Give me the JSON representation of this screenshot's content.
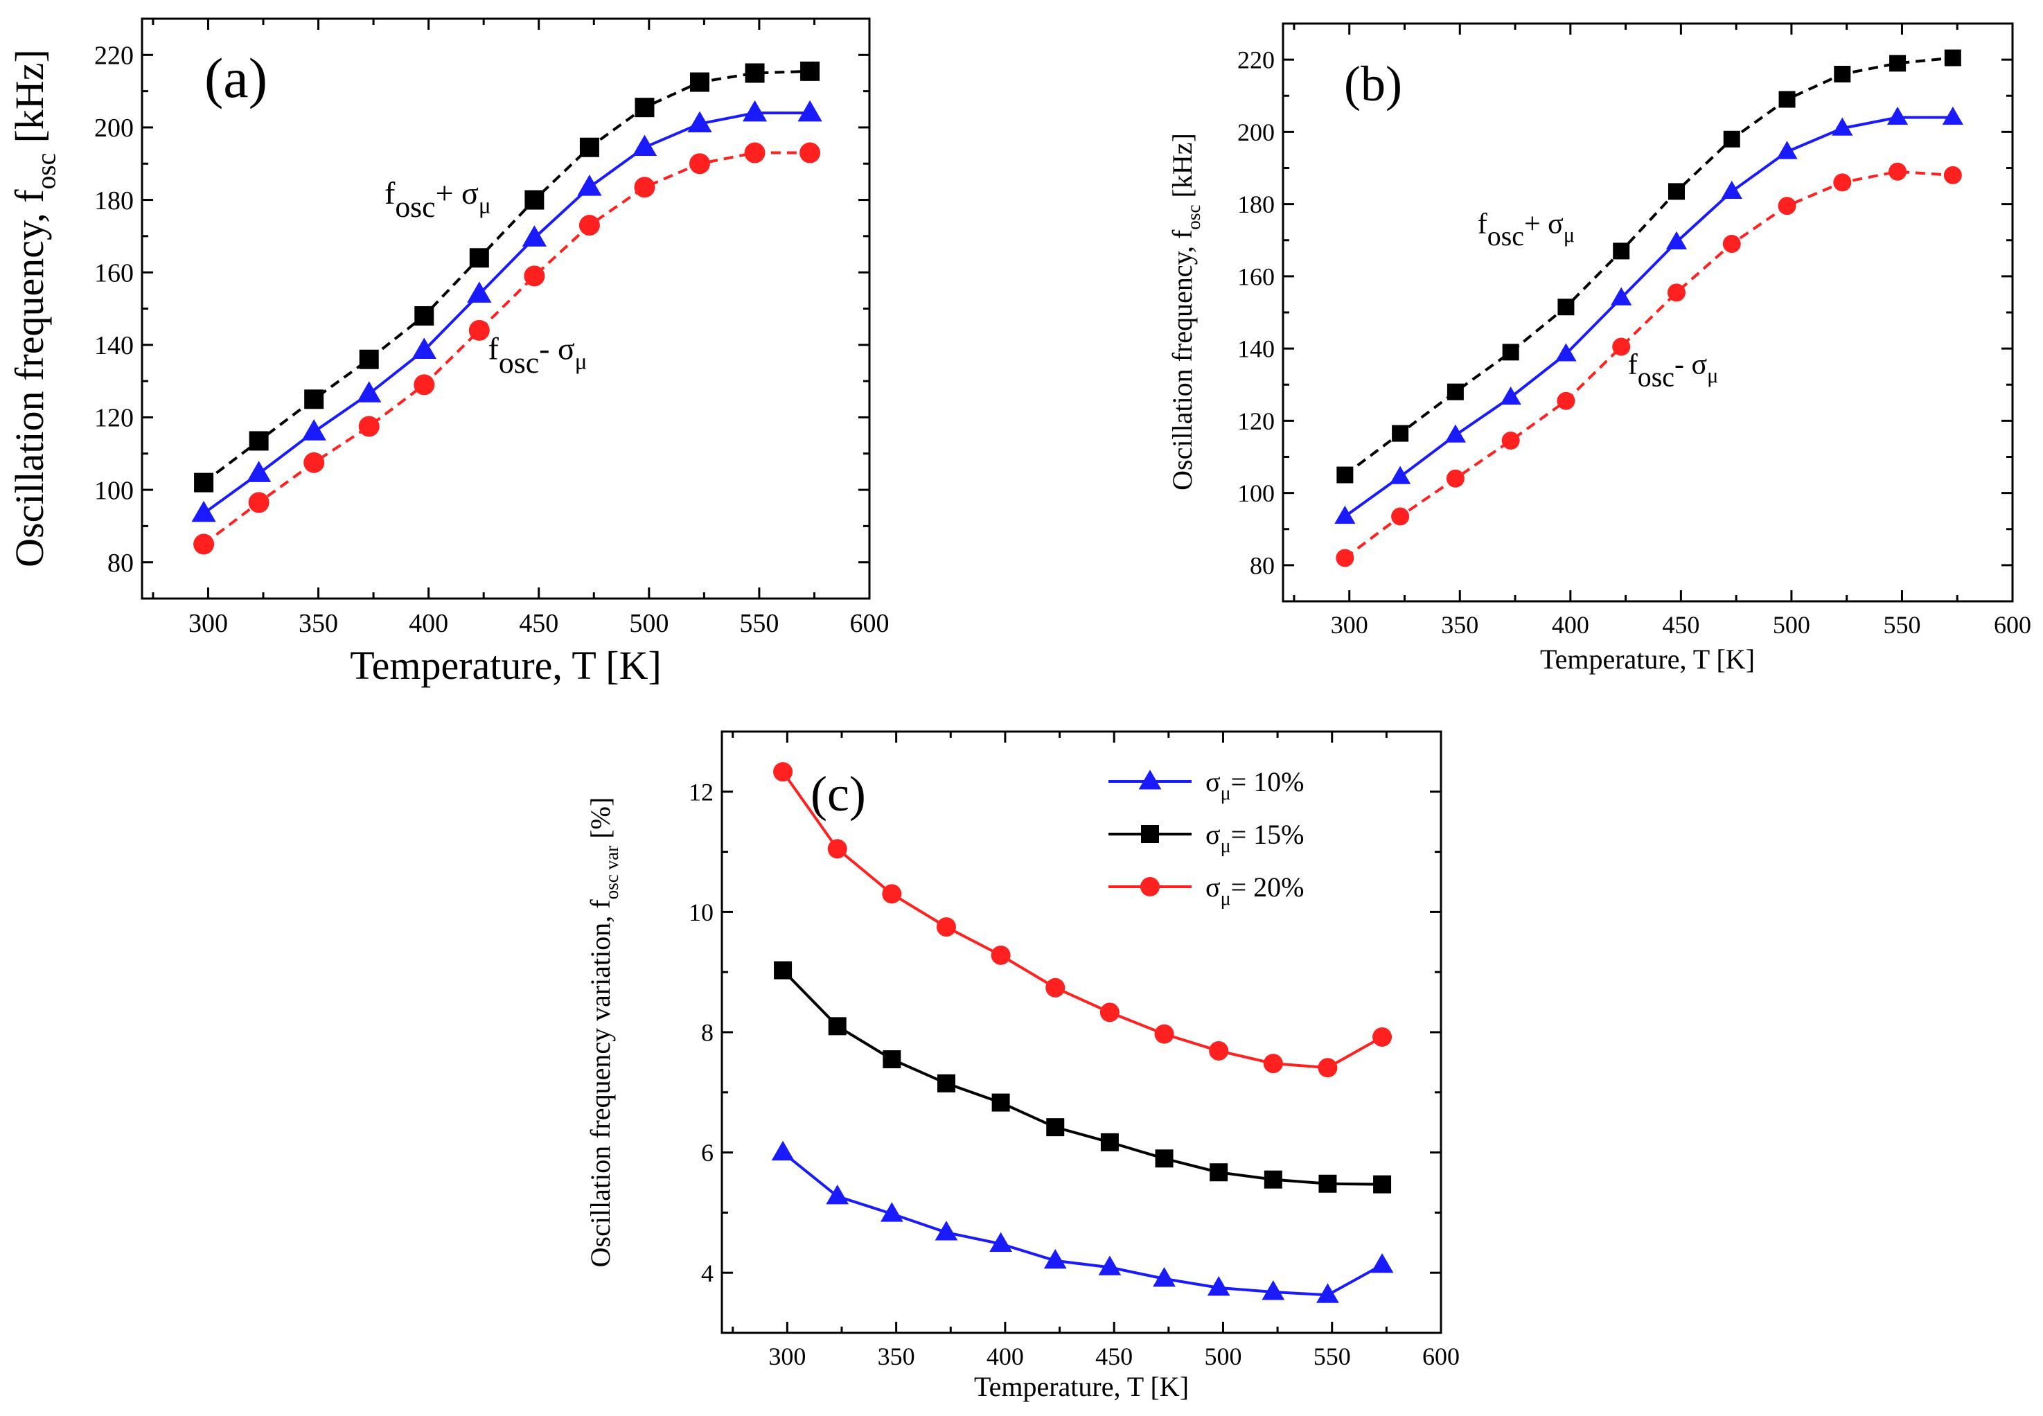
{
  "chart_data": [
    {
      "id": "a",
      "type": "line",
      "panel_tag": "(a)",
      "xlabel": "Temperature, T [K]",
      "ylabel": {
        "main": "Oscillation frequency, f",
        "sub": "osc",
        "unit": "[kHz]"
      },
      "xlim": [
        270,
        600
      ],
      "ylim": [
        70,
        230
      ],
      "xticks": [
        300,
        350,
        400,
        450,
        500,
        550,
        600
      ],
      "yticks": [
        80,
        100,
        120,
        140,
        160,
        180,
        200,
        220
      ],
      "x": [
        298,
        323,
        348,
        373,
        398,
        423,
        448,
        473,
        498,
        523,
        548,
        573
      ],
      "annotations": [
        {
          "id": "plus",
          "base": "f",
          "sub": "osc",
          "op": "+ ",
          "sym": "σ",
          "sym_sub": "μ",
          "at_x": 380,
          "at_y": 179
        },
        {
          "id": "minus",
          "base": "f",
          "sub": "osc",
          "op": "- ",
          "sym": "σ",
          "sym_sub": "μ",
          "at_x": 427,
          "at_y": 136
        }
      ],
      "series": [
        {
          "name": "f_osc + σμ",
          "color": "#000000",
          "marker": "square",
          "dash": true,
          "values": [
            102,
            113.5,
            125,
            136,
            148,
            164,
            180,
            194.5,
            205.5,
            212.5,
            215,
            215.5
          ]
        },
        {
          "name": "f_osc",
          "color": "#1a1aff",
          "marker": "triangle",
          "dash": false,
          "values": [
            93.5,
            104.5,
            116,
            126.5,
            138.5,
            154,
            169.5,
            183.5,
            194.5,
            201,
            204,
            204
          ]
        },
        {
          "name": "f_osc - σμ",
          "color": "#ff2020",
          "marker": "circle",
          "dash": true,
          "values": [
            85,
            96.5,
            107.5,
            117.5,
            129,
            144,
            159,
            173,
            183.5,
            190,
            193,
            193
          ]
        }
      ]
    },
    {
      "id": "b",
      "type": "line",
      "panel_tag": "(b)",
      "xlabel": "Temperature, T [K]",
      "ylabel": {
        "main": "Oscillation frequency, f",
        "sub": "osc",
        "unit": "[kHz]"
      },
      "xlim": [
        270,
        600
      ],
      "ylim": [
        70,
        230
      ],
      "xticks": [
        300,
        350,
        400,
        450,
        500,
        550,
        600
      ],
      "yticks": [
        80,
        100,
        120,
        140,
        160,
        180,
        200,
        220
      ],
      "x": [
        298,
        323,
        348,
        373,
        398,
        423,
        448,
        473,
        498,
        523,
        548,
        573
      ],
      "annotations": [
        {
          "id": "plus",
          "base": "f",
          "sub": "osc",
          "op": "+ ",
          "sym": "σ",
          "sym_sub": "μ",
          "at_x": 358,
          "at_y": 172
        },
        {
          "id": "minus",
          "base": "f",
          "sub": "osc",
          "op": "- ",
          "sym": "σ",
          "sym_sub": "μ",
          "at_x": 426,
          "at_y": 133
        }
      ],
      "series": [
        {
          "name": "f_osc + σμ",
          "color": "#000000",
          "marker": "square",
          "dash": true,
          "values": [
            105,
            116.5,
            128,
            139,
            151.5,
            167,
            183.5,
            198,
            209,
            216,
            219,
            220.5
          ]
        },
        {
          "name": "f_osc",
          "color": "#1a1aff",
          "marker": "triangle",
          "dash": false,
          "values": [
            93.5,
            104.5,
            116,
            126.5,
            138.5,
            154,
            169.5,
            183.5,
            194.5,
            201,
            204,
            204
          ]
        },
        {
          "name": "f_osc - σμ",
          "color": "#ff2020",
          "marker": "circle",
          "dash": true,
          "values": [
            82,
            93.5,
            104,
            114.5,
            125.5,
            140.5,
            155.5,
            169,
            179.5,
            186,
            189,
            188
          ]
        }
      ]
    },
    {
      "id": "c",
      "type": "line",
      "panel_tag": "(c)",
      "xlabel": "Temperature, T [K]",
      "ylabel": {
        "main": "Oscillation frequency variation, f",
        "sub": "osc var",
        "unit": "[%]"
      },
      "xlim": [
        270,
        600
      ],
      "ylim": [
        3,
        13
      ],
      "xticks": [
        300,
        350,
        400,
        450,
        500,
        550,
        600
      ],
      "yticks": [
        4,
        6,
        8,
        10,
        12
      ],
      "x": [
        298,
        323,
        348,
        373,
        398,
        423,
        448,
        473,
        498,
        523,
        548,
        573
      ],
      "legend_position": "top-right",
      "series": [
        {
          "name": "σμ= 10%",
          "label_sym": "σ",
          "label_sub": "μ",
          "label_rest": "= 10%",
          "color": "#1a1aff",
          "marker": "triangle",
          "dash": false,
          "values": [
            6.0,
            5.27,
            4.98,
            4.67,
            4.48,
            4.2,
            4.09,
            3.9,
            3.75,
            3.68,
            3.63,
            4.13
          ]
        },
        {
          "name": "σμ= 15%",
          "label_sym": "σ",
          "label_sub": "μ",
          "label_rest": "= 15%",
          "color": "#000000",
          "marker": "square",
          "dash": false,
          "values": [
            9.03,
            8.1,
            7.55,
            7.15,
            6.83,
            6.42,
            6.17,
            5.9,
            5.67,
            5.55,
            5.48,
            5.47
          ]
        },
        {
          "name": "σμ= 20%",
          "label_sym": "σ",
          "label_sub": "μ",
          "label_rest": "= 20%",
          "color": "#ff2020",
          "marker": "circle",
          "dash": false,
          "values": [
            12.33,
            11.05,
            10.3,
            9.75,
            9.28,
            8.74,
            8.33,
            7.97,
            7.69,
            7.48,
            7.41,
            7.92
          ]
        }
      ]
    }
  ]
}
